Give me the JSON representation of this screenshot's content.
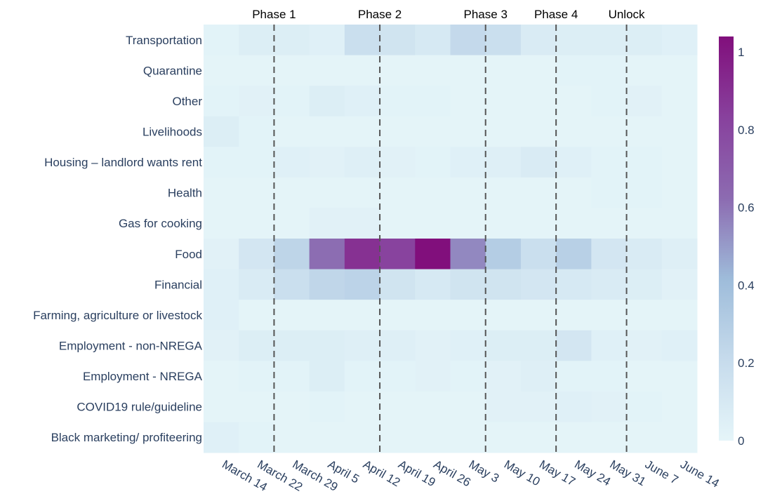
{
  "chart_data": {
    "type": "heatmap",
    "x": [
      "March 14",
      "March 22",
      "March 29",
      "April 5",
      "April 12",
      "April 19",
      "April 26",
      "May 3",
      "May 10",
      "May 17",
      "May 24",
      "May 31",
      "June 7",
      "June 14"
    ],
    "y": [
      "Transportation",
      "Quarantine",
      "Other",
      "Livelihoods",
      "Housing – landlord wants rent",
      "Health",
      "Gas for cooking",
      "Food",
      "Financial",
      "Farming, agriculture or livestock",
      "Employment - non-NREGA",
      "Employment - NREGA",
      "COVID19 rule/guideline",
      "Black marketing/ profiteering"
    ],
    "z": [
      [
        0.02,
        0.06,
        0.06,
        0.04,
        0.18,
        0.14,
        0.1,
        0.22,
        0.18,
        0.08,
        0.06,
        0.06,
        0.06,
        0.04
      ],
      [
        0.01,
        0.01,
        0.01,
        0.01,
        0.01,
        0.01,
        0.01,
        0.01,
        0.01,
        0.01,
        0.02,
        0.02,
        0.01,
        0.01
      ],
      [
        0.02,
        0.03,
        0.02,
        0.06,
        0.04,
        0.02,
        0.02,
        0.01,
        0.01,
        0.01,
        0.01,
        0.02,
        0.03,
        0.01
      ],
      [
        0.06,
        0.02,
        0.01,
        0.01,
        0.01,
        0.01,
        0.01,
        0.01,
        0.01,
        0.01,
        0.01,
        0.01,
        0.01,
        0.01
      ],
      [
        0.02,
        0.02,
        0.04,
        0.03,
        0.05,
        0.03,
        0.02,
        0.04,
        0.05,
        0.08,
        0.04,
        0.02,
        0.02,
        0.01
      ],
      [
        0.01,
        0.01,
        0.01,
        0.01,
        0.01,
        0.01,
        0.01,
        0.01,
        0.01,
        0.01,
        0.01,
        0.02,
        0.02,
        0.01
      ],
      [
        0.01,
        0.01,
        0.01,
        0.03,
        0.03,
        0.01,
        0.01,
        0.01,
        0.01,
        0.01,
        0.01,
        0.01,
        0.01,
        0.01
      ],
      [
        0.03,
        0.12,
        0.25,
        0.62,
        0.9,
        0.82,
        1.04,
        0.55,
        0.3,
        0.18,
        0.28,
        0.12,
        0.08,
        0.05
      ],
      [
        0.04,
        0.08,
        0.18,
        0.24,
        0.26,
        0.14,
        0.1,
        0.14,
        0.14,
        0.12,
        0.1,
        0.08,
        0.06,
        0.03
      ],
      [
        0.04,
        0.01,
        0.01,
        0.01,
        0.01,
        0.01,
        0.01,
        0.01,
        0.01,
        0.01,
        0.01,
        0.01,
        0.01,
        0.01
      ],
      [
        0.03,
        0.06,
        0.06,
        0.06,
        0.05,
        0.05,
        0.03,
        0.04,
        0.06,
        0.06,
        0.12,
        0.04,
        0.03,
        0.04
      ],
      [
        0.01,
        0.02,
        0.02,
        0.06,
        0.02,
        0.02,
        0.03,
        0.02,
        0.03,
        0.05,
        0.02,
        0.02,
        0.01,
        0.01
      ],
      [
        0.01,
        0.01,
        0.01,
        0.02,
        0.01,
        0.01,
        0.01,
        0.01,
        0.03,
        0.03,
        0.04,
        0.03,
        0.02,
        0.01
      ],
      [
        0.04,
        0.02,
        0.01,
        0.01,
        0.01,
        0.01,
        0.01,
        0.01,
        0.01,
        0.01,
        0.01,
        0.01,
        0.01,
        0.01
      ]
    ],
    "zlim": [
      0,
      1.04
    ],
    "colorscale": [
      [
        0,
        "#e5f5f9"
      ],
      [
        0.2,
        "#c6dbec"
      ],
      [
        0.4,
        "#9ebcda"
      ],
      [
        0.6,
        "#8c6bb1"
      ],
      [
        0.8,
        "#88419d"
      ],
      [
        1,
        "#810f7c"
      ]
    ],
    "colorbar_ticks": [
      0,
      0.2,
      0.4,
      0.6,
      0.8,
      1
    ],
    "phases": [
      {
        "label": "Phase 1",
        "x": 1.5
      },
      {
        "label": "Phase 2",
        "x": 4.5
      },
      {
        "label": "Phase 3",
        "x": 7.5
      },
      {
        "label": "Phase 4",
        "x": 9.5
      },
      {
        "label": "Unlock",
        "x": 11.5
      }
    ]
  }
}
